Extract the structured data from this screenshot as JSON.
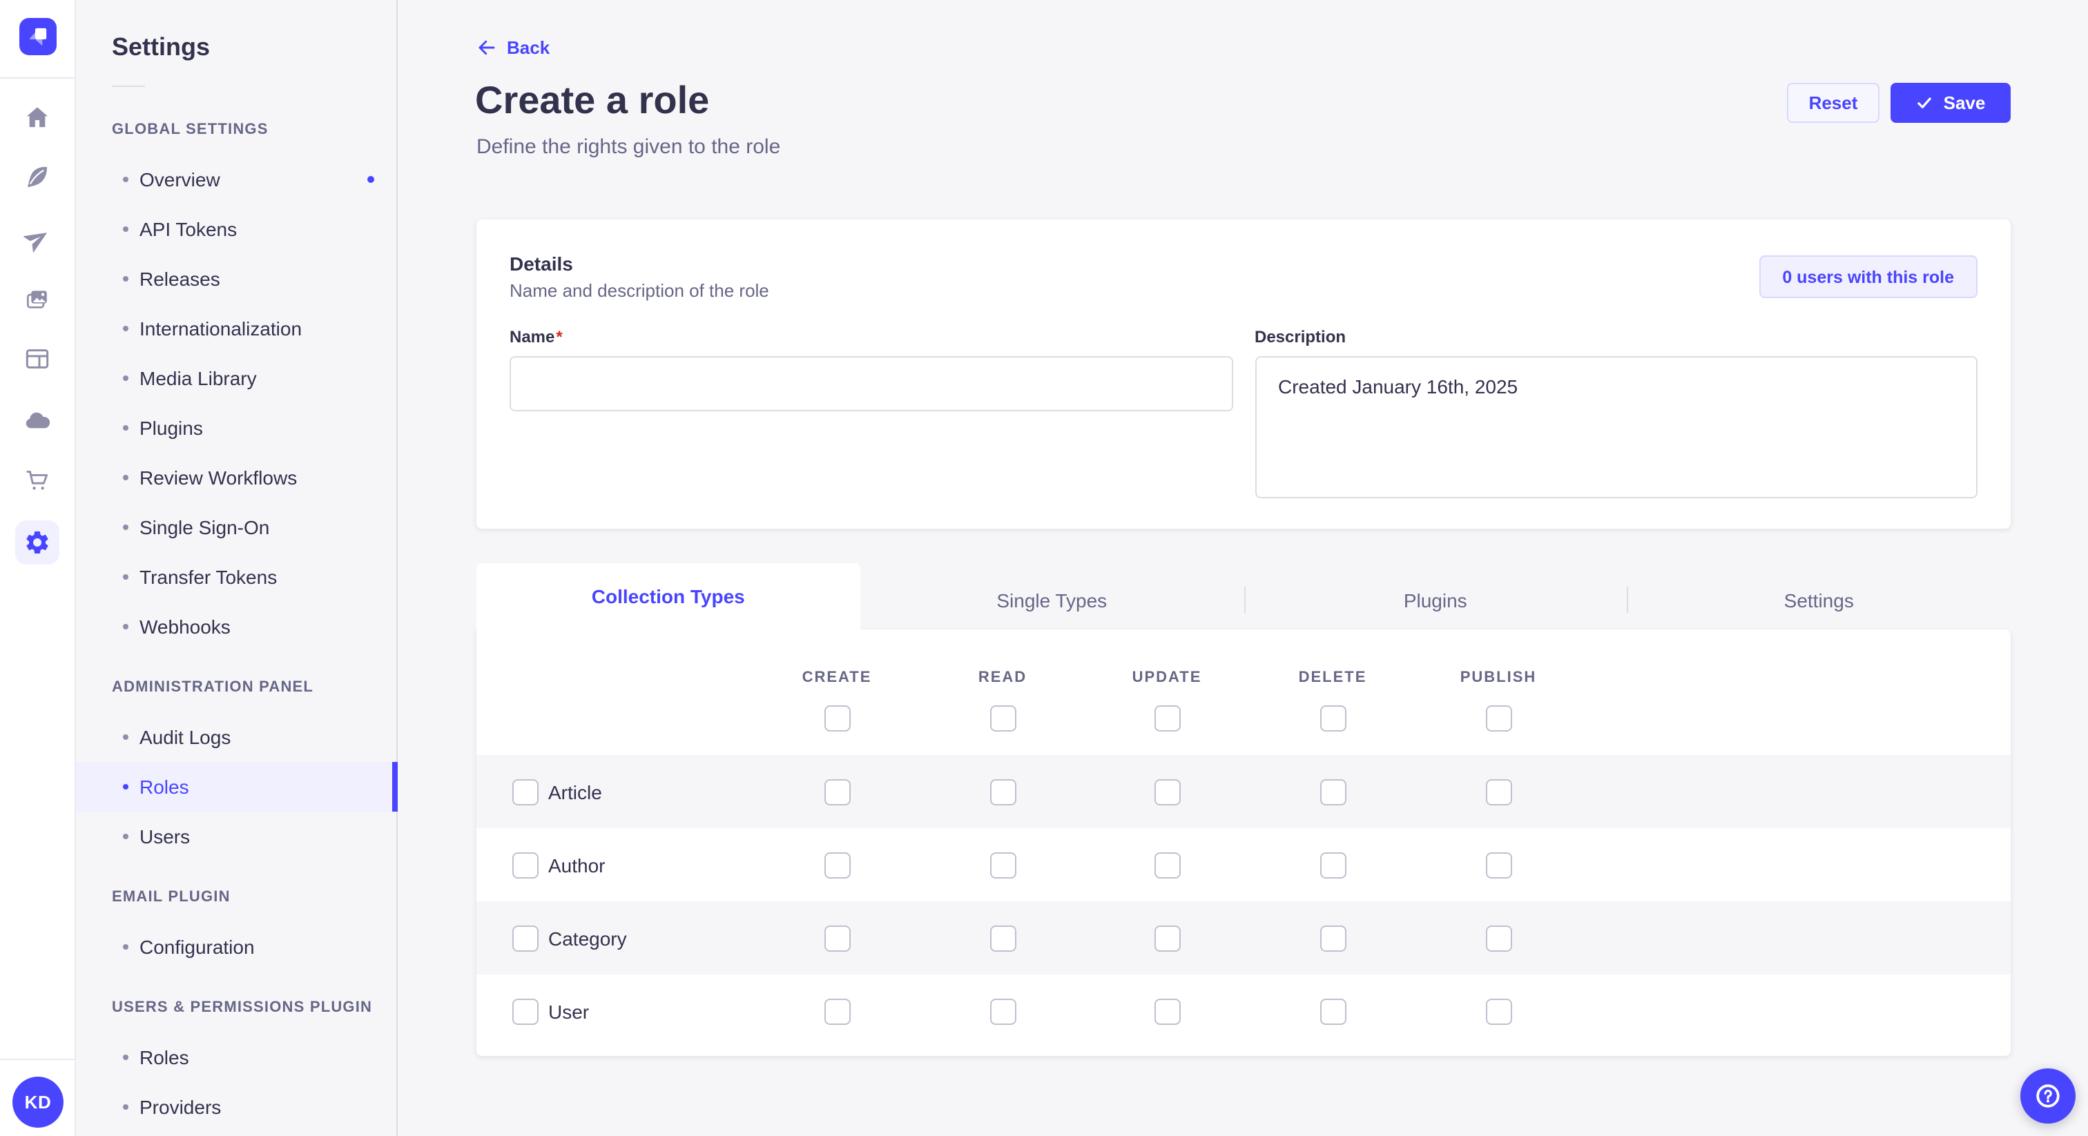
{
  "subnav": {
    "title": "Settings",
    "sections": [
      {
        "label": "GLOBAL SETTINGS",
        "items": [
          {
            "label": "Overview",
            "notification": true
          },
          {
            "label": "API Tokens"
          },
          {
            "label": "Releases"
          },
          {
            "label": "Internationalization"
          },
          {
            "label": "Media Library"
          },
          {
            "label": "Plugins"
          },
          {
            "label": "Review Workflows"
          },
          {
            "label": "Single Sign-On"
          },
          {
            "label": "Transfer Tokens"
          },
          {
            "label": "Webhooks"
          }
        ]
      },
      {
        "label": "ADMINISTRATION PANEL",
        "items": [
          {
            "label": "Audit Logs"
          },
          {
            "label": "Roles",
            "active": true
          },
          {
            "label": "Users"
          }
        ]
      },
      {
        "label": "EMAIL PLUGIN",
        "items": [
          {
            "label": "Configuration"
          }
        ]
      },
      {
        "label": "USERS & PERMISSIONS PLUGIN",
        "items": [
          {
            "label": "Roles"
          },
          {
            "label": "Providers"
          }
        ]
      }
    ]
  },
  "header": {
    "back_label": "Back",
    "title": "Create a role",
    "subtitle": "Define the rights given to the role",
    "reset_label": "Reset",
    "save_label": "Save"
  },
  "details": {
    "title": "Details",
    "subtitle": "Name and description of the role",
    "users_button_label": "0 users with this role",
    "name_label": "Name",
    "name_required_mark": "*",
    "name_value": "",
    "description_label": "Description",
    "description_value": "Created January 16th, 2025"
  },
  "permissions": {
    "tabs": [
      {
        "label": "Collection Types",
        "active": true
      },
      {
        "label": "Single Types"
      },
      {
        "label": "Plugins"
      },
      {
        "label": "Settings"
      }
    ],
    "columns": [
      {
        "label": "CREATE",
        "checked": false
      },
      {
        "label": "READ",
        "checked": false
      },
      {
        "label": "UPDATE",
        "checked": false
      },
      {
        "label": "DELETE",
        "checked": false
      },
      {
        "label": "PUBLISH",
        "checked": false
      }
    ],
    "rows": [
      {
        "label": "Article",
        "checked": false,
        "checks": [
          false,
          false,
          false,
          false,
          false
        ]
      },
      {
        "label": "Author",
        "checked": false,
        "checks": [
          false,
          false,
          false,
          false,
          false
        ]
      },
      {
        "label": "Category",
        "checked": false,
        "checks": [
          false,
          false,
          false,
          false,
          false
        ]
      },
      {
        "label": "User",
        "checked": false,
        "checks": [
          false,
          false,
          false,
          false,
          false
        ]
      }
    ]
  },
  "user": {
    "initials": "KD"
  },
  "icon_rail": {
    "icons": [
      "strapi-logo",
      "home",
      "content-feather",
      "send-plane",
      "media-library",
      "layout",
      "cloud",
      "marketplace-cart",
      "settings-gear"
    ],
    "active_icon": "settings-gear"
  },
  "colors": {
    "primary": "#4945ff",
    "primary_light_bg": "#f0f0ff",
    "primary_border": "#d9d8ff",
    "text_dark": "#32324d",
    "text_muted": "#666687",
    "page_bg": "#f6f6f9",
    "border": "#dcdce4",
    "checkbox_border": "#c0c0cf",
    "required_red": "#d02b20"
  }
}
